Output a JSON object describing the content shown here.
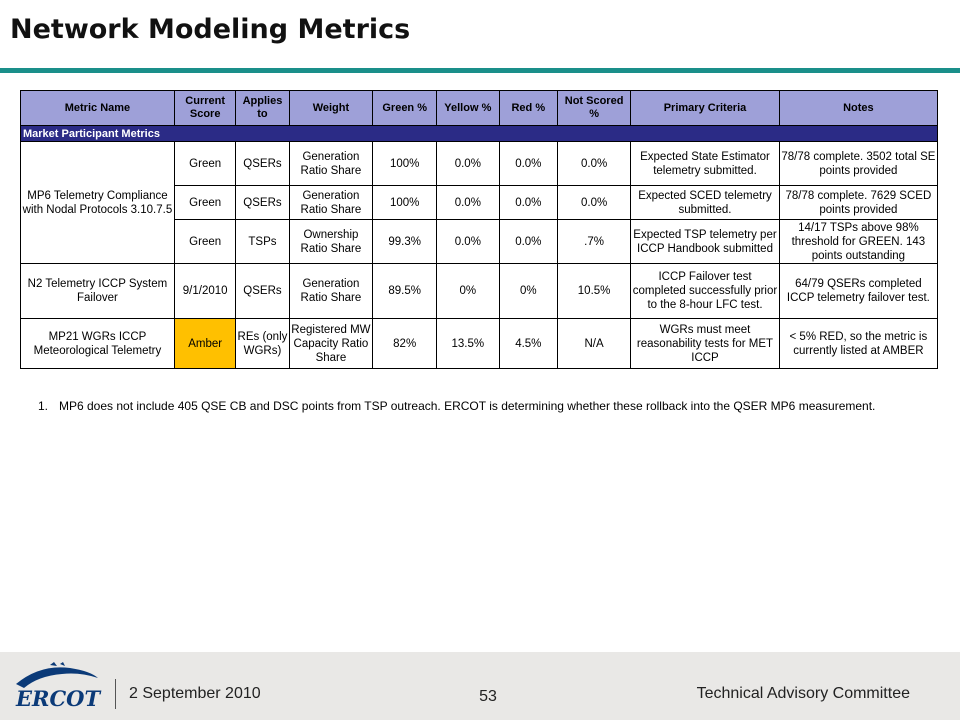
{
  "slide": {
    "title": "Network Modeling Metrics"
  },
  "table": {
    "headers": [
      "Metric Name",
      "Current Score",
      "Applies to",
      "Weight",
      "Green %",
      "Yellow %",
      "Red %",
      "Not Scored %",
      "Primary Criteria",
      "Notes"
    ],
    "section": "Market Participant Metrics",
    "metric_mp6": "MP6 Telemetry Compliance with Nodal Protocols 3.10.7.5",
    "rows": [
      {
        "score": "Green",
        "applies": "QSERs",
        "weight": "Generation Ratio Share",
        "green": "100%",
        "yellow": "0.0%",
        "red": "0.0%",
        "not_scored": "0.0%",
        "criteria": "Expected State Estimator telemetry submitted.",
        "notes": "78/78 complete.  3502 total SE points provided"
      },
      {
        "score": "Green",
        "applies": "QSERs",
        "weight": "Generation Ratio Share",
        "green": "100%",
        "yellow": "0.0%",
        "red": "0.0%",
        "not_scored": "0.0%",
        "criteria": "Expected SCED telemetry submitted.",
        "notes": "78/78 complete.  7629 SCED points provided"
      },
      {
        "score": "Green",
        "applies": "TSPs",
        "weight": "Ownership Ratio Share",
        "green": "99.3%",
        "yellow": "0.0%",
        "red": "0.0%",
        "not_scored": ".7%",
        "criteria": "Expected TSP telemetry per ICCP Handbook submitted",
        "notes": "14/17 TSPs above 98% threshold for GREEN.  143 points outstanding"
      },
      {
        "metric": "N2 Telemetry ICCP System Failover",
        "score": "9/1/2010",
        "applies": "QSERs",
        "weight": "Generation Ratio Share",
        "green": "89.5%",
        "yellow": "0%",
        "red": "0%",
        "not_scored": "10.5%",
        "criteria": "ICCP Failover test completed successfully prior to the 8-hour LFC  test.",
        "notes": "64/79 QSERs completed ICCP telemetry failover test."
      },
      {
        "metric": "MP21 WGRs ICCP Meteorological Telemetry",
        "score": "Amber",
        "applies": "REs (only WGRs)",
        "weight": "Registered MW Capacity Ratio Share",
        "green": "82%",
        "yellow": "13.5%",
        "red": "4.5%",
        "not_scored": "N/A",
        "criteria": "WGRs must meet reasonability tests for MET ICCP",
        "notes": "< 5% RED, so the metric is currently listed at AMBER"
      }
    ]
  },
  "footnote": {
    "number": "1.",
    "text": "MP6 does not include 405 QSE CB and DSC points from TSP outreach.   ERCOT is determining whether these rollback into the QSER MP6 measurement."
  },
  "footer": {
    "logo_text": "ERCOT",
    "date": "2 September 2010",
    "page": "53",
    "committee": "Technical Advisory Committee"
  },
  "colors": {
    "header_bg": "#9ea0d8",
    "section_bg": "#2b2b86",
    "amber": "#ffc000",
    "rule": "#1a8f8a",
    "logo_blue": "#0b3a78"
  }
}
